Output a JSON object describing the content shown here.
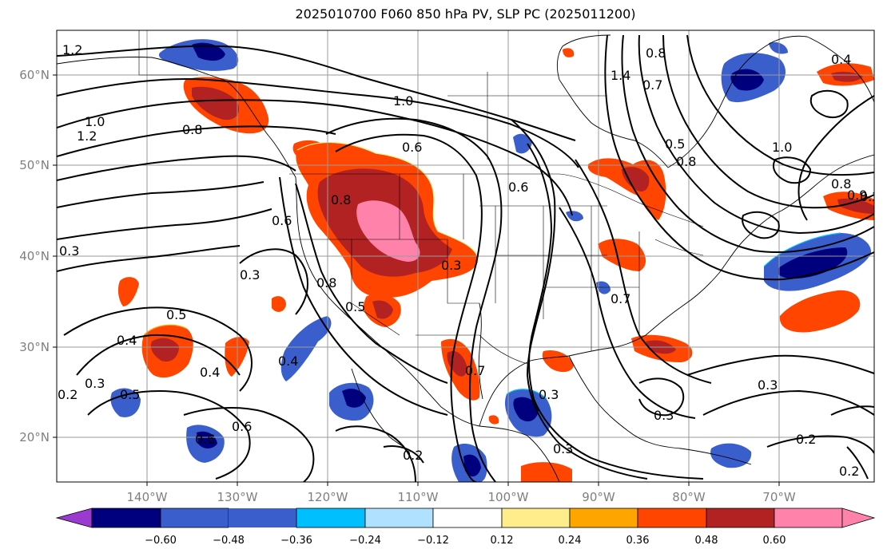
{
  "title": "2025010700 F060 850 hPa PV, SLP PC (2025011200)",
  "map": {
    "longitude_labels": [
      "140°W",
      "130°W",
      "120°W",
      "110°W",
      "100°W",
      "90°W",
      "80°W",
      "70°W"
    ],
    "latitude_labels": [
      "60°N",
      "50°N",
      "40°N",
      "30°N",
      "20°N"
    ],
    "contour_labels": [
      "1.2",
      "1.0",
      "1.2",
      "0.8",
      "1.0",
      "0.6",
      "0.8",
      "0.3",
      "0.3",
      "0.6",
      "0.8",
      "0.5",
      "0.3",
      "0.4",
      "0.5",
      "0.4",
      "0.3",
      "0.2",
      "0.5",
      "0.6",
      "0.6",
      "0.4",
      "0.2",
      "0.7",
      "0.3",
      "0.3",
      "0.6",
      "1.4",
      "0.7",
      "0.8",
      "0.4",
      "0.8",
      "1.0",
      "0.8",
      "0.9",
      "0.2",
      "0.7",
      "0.3",
      "0.3",
      "0.2",
      "0.5",
      "0.2"
    ]
  },
  "colorbar": {
    "tick_labels": [
      "−0.60",
      "−0.48",
      "−0.36",
      "−0.24",
      "−0.12",
      "0.12",
      "0.24",
      "0.36",
      "0.48",
      "0.60"
    ],
    "bins": [
      {
        "range": "< -0.60",
        "color": "#9a3ad0"
      },
      {
        "range": "-0.60 to -0.48",
        "color": "#00007f"
      },
      {
        "range": "-0.48 to -0.36",
        "color": "#3a5fcd"
      },
      {
        "range": "-0.36 to -0.24",
        "color": "#00bfff"
      },
      {
        "range": "-0.24 to -0.12",
        "color": "#b0e2ff"
      },
      {
        "range": "-0.12 to 0.12",
        "color": "#ffffff"
      },
      {
        "range": "0.12 to 0.24",
        "color": "#ffec8b"
      },
      {
        "range": "0.24 to 0.36",
        "color": "#ffa500"
      },
      {
        "range": "0.36 to 0.48",
        "color": "#ff4500"
      },
      {
        "range": "0.48 to 0.60",
        "color": "#b22222"
      },
      {
        "range": "> 0.60",
        "color": "#ff82ab"
      }
    ]
  }
}
